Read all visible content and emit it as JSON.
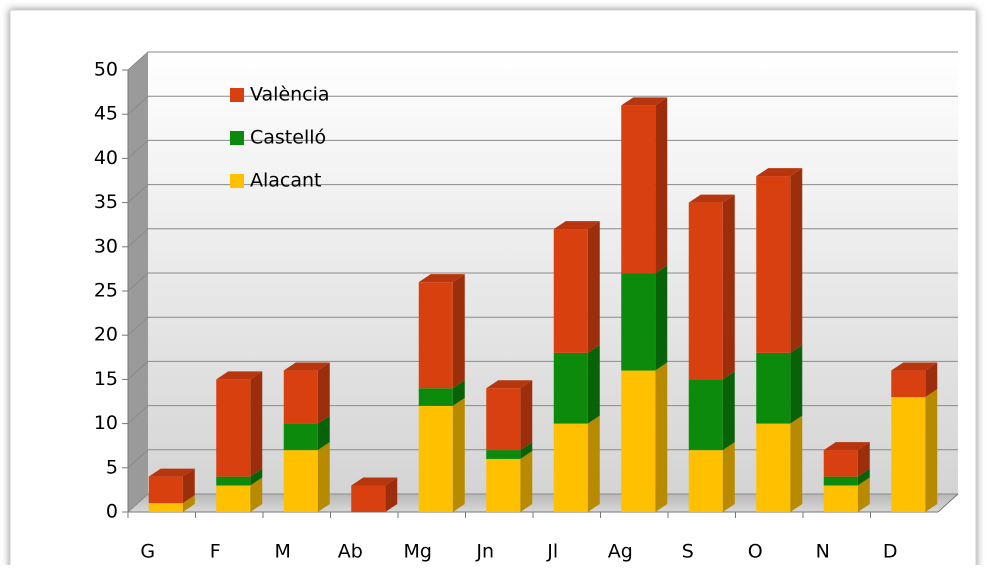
{
  "chart_data": {
    "type": "bar",
    "stacked": true,
    "categories": [
      "G",
      "F",
      "M",
      "Ab",
      "Mg",
      "Jn",
      "Jl",
      "Ag",
      "S",
      "O",
      "N",
      "D"
    ],
    "series": [
      {
        "name": "Alacant",
        "color": "#ffc000",
        "values": [
          1,
          3,
          7,
          0,
          12,
          6,
          10,
          16,
          7,
          10,
          3,
          13
        ]
      },
      {
        "name": "Castelló",
        "color": "#0b8a0b",
        "values": [
          0,
          1,
          3,
          0,
          2,
          1,
          8,
          11,
          8,
          8,
          1,
          0
        ]
      },
      {
        "name": "València",
        "color": "#d9400f",
        "values": [
          3,
          11,
          6,
          3,
          12,
          7,
          14,
          19,
          20,
          20,
          3,
          3
        ]
      }
    ],
    "ylim": [
      0,
      50
    ],
    "yticks": [
      0,
      5,
      10,
      15,
      20,
      25,
      30,
      35,
      40,
      45,
      50
    ],
    "grid": true,
    "legend": "top-left"
  }
}
